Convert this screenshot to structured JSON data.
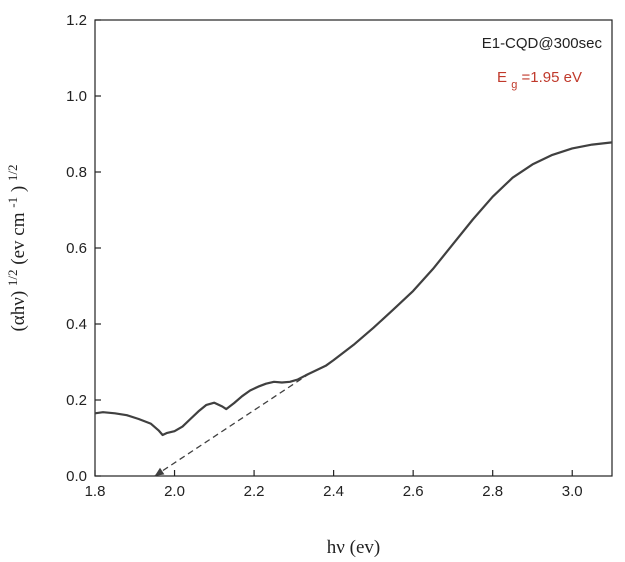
{
  "chart_data": {
    "type": "line",
    "title": "",
    "xlabel": "hν (ev)",
    "ylabel_parts": [
      "(αhν)",
      "1/2",
      " (ev cm",
      "-1",
      ")",
      "1/2"
    ],
    "xlim": [
      1.8,
      3.1
    ],
    "ylim": [
      0.0,
      1.2
    ],
    "x_ticks": [
      1.8,
      2.0,
      2.2,
      2.4,
      2.6,
      2.8,
      3.0
    ],
    "x_tick_labels": [
      "1.8",
      "2.0",
      "2.2",
      "2.4",
      "2.6",
      "2.8",
      "3.0"
    ],
    "y_ticks": [
      0.0,
      0.2,
      0.4,
      0.6,
      0.8,
      1.0,
      1.2
    ],
    "y_tick_labels": [
      "0.0",
      "0.2",
      "0.4",
      "0.6",
      "0.8",
      "1.0",
      "1.2"
    ],
    "grid": false,
    "legend_position": "top-right",
    "series": [
      {
        "name": "E1-CQD@300sec",
        "color": "#404040",
        "x": [
          1.8,
          1.82,
          1.85,
          1.88,
          1.91,
          1.94,
          1.96,
          1.97,
          1.98,
          2.0,
          2.02,
          2.04,
          2.06,
          2.08,
          2.1,
          2.12,
          2.13,
          2.15,
          2.17,
          2.19,
          2.21,
          2.23,
          2.25,
          2.27,
          2.29,
          2.31,
          2.33,
          2.35,
          2.38,
          2.4,
          2.45,
          2.5,
          2.55,
          2.6,
          2.65,
          2.7,
          2.75,
          2.8,
          2.85,
          2.9,
          2.95,
          3.0,
          3.05,
          3.1
        ],
        "y": [
          0.165,
          0.168,
          0.165,
          0.16,
          0.15,
          0.138,
          0.12,
          0.108,
          0.113,
          0.118,
          0.13,
          0.15,
          0.17,
          0.187,
          0.193,
          0.183,
          0.176,
          0.192,
          0.21,
          0.225,
          0.235,
          0.243,
          0.248,
          0.246,
          0.248,
          0.254,
          0.265,
          0.275,
          0.29,
          0.305,
          0.345,
          0.39,
          0.438,
          0.487,
          0.545,
          0.61,
          0.675,
          0.735,
          0.785,
          0.82,
          0.845,
          0.862,
          0.872,
          0.878
        ]
      }
    ],
    "annotations": [
      {
        "name": "Eg",
        "text_main": "E",
        "text_sub": "g",
        "text_rest": "=1.95 eV",
        "color": "#c0392b"
      }
    ],
    "tangent_line": {
      "from": [
        1.95,
        0.0
      ],
      "to": [
        2.34,
        0.27
      ],
      "style": "dashed",
      "color": "#404040"
    }
  }
}
